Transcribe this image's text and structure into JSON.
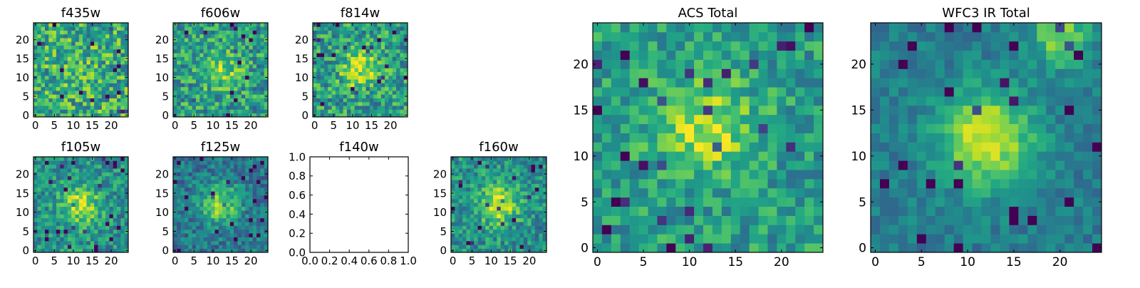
{
  "chart_data": [
    {
      "type": "heatmap",
      "title": "f435w",
      "xticks": [
        "0",
        "5",
        "10",
        "15",
        "20"
      ],
      "yticks": [
        "0",
        "5",
        "10",
        "15",
        "20"
      ],
      "xlim": [
        -0.5,
        24.5
      ],
      "ylim": [
        -0.5,
        24.5
      ],
      "grid": false,
      "colormap": "viridis",
      "n_pixels": [
        25,
        25
      ],
      "peak": [
        12,
        12
      ],
      "peak_strength": 0.05,
      "noise": 0.55,
      "base": 0.62
    },
    {
      "type": "heatmap",
      "title": "f606w",
      "xticks": [
        "0",
        "5",
        "10",
        "15",
        "20"
      ],
      "yticks": [
        "0",
        "5",
        "10",
        "15",
        "20"
      ],
      "xlim": [
        -0.5,
        24.5
      ],
      "ylim": [
        -0.5,
        24.5
      ],
      "grid": false,
      "colormap": "viridis",
      "n_pixels": [
        25,
        25
      ],
      "peak": [
        12,
        12
      ],
      "peak_strength": 0.3,
      "noise": 0.5,
      "base": 0.55
    },
    {
      "type": "heatmap",
      "title": "f814w",
      "xticks": [
        "0",
        "5",
        "10",
        "15",
        "20"
      ],
      "yticks": [
        "0",
        "5",
        "10",
        "15",
        "20"
      ],
      "xlim": [
        -0.5,
        24.5
      ],
      "ylim": [
        -0.5,
        24.5
      ],
      "grid": false,
      "colormap": "viridis",
      "n_pixels": [
        25,
        25
      ],
      "peak": [
        12,
        12
      ],
      "peak_strength": 0.35,
      "noise": 0.5,
      "base": 0.55
    },
    {
      "type": "heatmap",
      "title": "f105w",
      "xticks": [
        "0",
        "5",
        "10",
        "15",
        "20"
      ],
      "yticks": [
        "0",
        "5",
        "10",
        "15",
        "20"
      ],
      "xlim": [
        -0.5,
        24.5
      ],
      "ylim": [
        -0.5,
        24.5
      ],
      "grid": false,
      "colormap": "viridis",
      "n_pixels": [
        25,
        25
      ],
      "peak": [
        12,
        12
      ],
      "peak_strength": 0.4,
      "noise": 0.4,
      "base": 0.5
    },
    {
      "type": "heatmap",
      "title": "f125w",
      "xticks": [
        "0",
        "5",
        "10",
        "15",
        "20"
      ],
      "yticks": [
        "0",
        "5",
        "10",
        "15",
        "20"
      ],
      "xlim": [
        -0.5,
        24.5
      ],
      "ylim": [
        -0.5,
        24.5
      ],
      "grid": false,
      "colormap": "viridis",
      "n_pixels": [
        25,
        25
      ],
      "peak": [
        12,
        12
      ],
      "peak_strength": 0.45,
      "noise": 0.35,
      "base": 0.4
    },
    {
      "type": "line",
      "title": "f140w",
      "xticks": [
        "0.0",
        "0.2",
        "0.4",
        "0.6",
        "0.8",
        "1.0"
      ],
      "yticks": [
        "0.0",
        "0.2",
        "0.4",
        "0.6",
        "0.8",
        "1.0"
      ],
      "xlim": [
        0,
        1
      ],
      "ylim": [
        0,
        1
      ],
      "grid": false,
      "series": []
    },
    {
      "type": "heatmap",
      "title": "f160w",
      "xticks": [
        "0",
        "5",
        "10",
        "15",
        "20"
      ],
      "yticks": [
        "0",
        "5",
        "10",
        "15",
        "20"
      ],
      "xlim": [
        -0.5,
        24.5
      ],
      "ylim": [
        -0.5,
        24.5
      ],
      "grid": false,
      "colormap": "viridis",
      "n_pixels": [
        25,
        25
      ],
      "peak": [
        12,
        12
      ],
      "peak_strength": 0.45,
      "noise": 0.4,
      "base": 0.5
    },
    {
      "type": "heatmap",
      "title": "ACS Total",
      "xticks": [
        "0",
        "5",
        "10",
        "15",
        "20"
      ],
      "yticks": [
        "0",
        "5",
        "10",
        "15",
        "20"
      ],
      "xlim": [
        -0.5,
        24.5
      ],
      "ylim": [
        -0.5,
        24.5
      ],
      "grid": false,
      "colormap": "viridis",
      "n_pixels": [
        25,
        25
      ],
      "peak": [
        12,
        13
      ],
      "peak_strength": 0.35,
      "noise": 0.38,
      "base": 0.55
    },
    {
      "type": "heatmap",
      "title": "WFC3 IR Total",
      "xticks": [
        "0",
        "5",
        "10",
        "15",
        "20"
      ],
      "yticks": [
        "0",
        "5",
        "10",
        "15",
        "20"
      ],
      "xlim": [
        -0.5,
        24.5
      ],
      "ylim": [
        -0.5,
        24.5
      ],
      "grid": false,
      "colormap": "viridis",
      "n_pixels": [
        25,
        25
      ],
      "peak": [
        12,
        12
      ],
      "peak_strength": 0.55,
      "noise": 0.22,
      "base": 0.42,
      "secondary_peak": [
        20,
        23
      ]
    }
  ]
}
